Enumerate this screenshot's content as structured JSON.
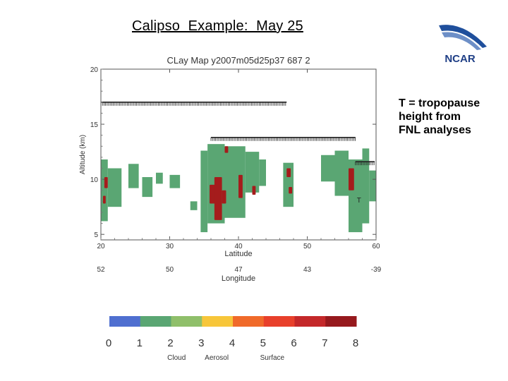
{
  "slide": {
    "title": "Calipso  Example:  May 25",
    "logo_text": "NCAR",
    "note_lines": [
      "T = tropopause",
      "height from",
      "FNL analyses"
    ]
  },
  "colors": {
    "clear": "#ffffff",
    "cloud": "#5aa673",
    "surface_red": "#a51c1c",
    "tropopause": "#222222",
    "colorbar": [
      "#4f6fd0",
      "#5aa673",
      "#8fbf6a",
      "#f7c63a",
      "#f06a2a",
      "#e8402b",
      "#c4282a",
      "#96191d"
    ]
  },
  "chart_data": {
    "type": "heatmap",
    "title": "CLay Map y2007m05d25p37 687 2",
    "xlabel": "Latitude",
    "ylabel": "Altitude (km)",
    "xlim": [
      20,
      60
    ],
    "ylim": [
      4.5,
      20
    ],
    "x_ticks": [
      20,
      30,
      40,
      50,
      60
    ],
    "y_ticks": [
      5,
      10,
      15,
      20
    ],
    "secondary_axis": {
      "label": "Longitude",
      "ticks": [
        {
          "lat": 20,
          "label": "52"
        },
        {
          "lat": 30,
          "label": "50"
        },
        {
          "lat": 40,
          "label": "47"
        },
        {
          "lat": 50,
          "label": "43"
        },
        {
          "lat": 60,
          "label": "-39"
        }
      ]
    },
    "tropopause_T": [
      {
        "lat_start": 20,
        "lat_end": 47,
        "alt": 17.0
      },
      {
        "lat_start": 36,
        "lat_end": 57,
        "alt": 13.8
      },
      {
        "lat_start": 57,
        "lat_end": 59.8,
        "alt": 11.6
      }
    ],
    "tropopause_marker": {
      "lat": 57.2,
      "alt": 7.9,
      "label": "T"
    },
    "cloud_regions": [
      {
        "lat0": 20.0,
        "lat1": 21.0,
        "top": 11.8,
        "base": 6.2
      },
      {
        "lat0": 21.0,
        "lat1": 23.0,
        "top": 11.0,
        "base": 7.5
      },
      {
        "lat0": 24.0,
        "lat1": 25.5,
        "top": 11.4,
        "base": 9.2
      },
      {
        "lat0": 26.0,
        "lat1": 27.5,
        "top": 10.2,
        "base": 8.4
      },
      {
        "lat0": 28.0,
        "lat1": 29.0,
        "top": 10.6,
        "base": 9.6
      },
      {
        "lat0": 30.0,
        "lat1": 31.5,
        "top": 10.4,
        "base": 9.2
      },
      {
        "lat0": 33.0,
        "lat1": 34.0,
        "top": 8.0,
        "base": 7.2
      },
      {
        "lat0": 34.5,
        "lat1": 35.5,
        "top": 12.6,
        "base": 5.2
      },
      {
        "lat0": 35.5,
        "lat1": 38.0,
        "top": 13.2,
        "base": 6.0
      },
      {
        "lat0": 38.0,
        "lat1": 41.0,
        "top": 13.0,
        "base": 6.5
      },
      {
        "lat0": 41.0,
        "lat1": 43.0,
        "top": 12.5,
        "base": 8.8
      },
      {
        "lat0": 43.0,
        "lat1": 44.0,
        "top": 11.8,
        "base": 9.4
      },
      {
        "lat0": 46.5,
        "lat1": 48.0,
        "top": 11.5,
        "base": 7.5
      },
      {
        "lat0": 52.0,
        "lat1": 54.0,
        "top": 12.2,
        "base": 9.8
      },
      {
        "lat0": 54.0,
        "lat1": 56.0,
        "top": 12.6,
        "base": 8.5
      },
      {
        "lat0": 56.0,
        "lat1": 58.0,
        "top": 11.8,
        "base": 5.2
      },
      {
        "lat0": 58.0,
        "lat1": 59.0,
        "top": 12.8,
        "base": 6.0
      },
      {
        "lat0": 59.0,
        "lat1": 60.0,
        "top": 10.8,
        "base": 8.0
      }
    ],
    "surface_cells": [
      {
        "lat0": 20.5,
        "lat1": 21.0,
        "top": 10.2,
        "base": 9.2
      },
      {
        "lat0": 20.3,
        "lat1": 20.7,
        "top": 8.5,
        "base": 7.8
      },
      {
        "lat0": 35.8,
        "lat1": 36.6,
        "top": 9.5,
        "base": 7.8
      },
      {
        "lat0": 36.5,
        "lat1": 37.6,
        "top": 10.2,
        "base": 6.3
      },
      {
        "lat0": 37.6,
        "lat1": 38.2,
        "top": 9.0,
        "base": 7.8
      },
      {
        "lat0": 40.0,
        "lat1": 40.6,
        "top": 10.4,
        "base": 8.3
      },
      {
        "lat0": 42.0,
        "lat1": 42.5,
        "top": 9.4,
        "base": 8.6
      },
      {
        "lat0": 47.0,
        "lat1": 47.6,
        "top": 11.0,
        "base": 10.2
      },
      {
        "lat0": 47.3,
        "lat1": 47.8,
        "top": 9.3,
        "base": 8.7
      },
      {
        "lat0": 56.0,
        "lat1": 56.8,
        "top": 11.0,
        "base": 9.0
      },
      {
        "lat0": 38.0,
        "lat1": 38.5,
        "top": 13.0,
        "base": 12.4
      }
    ],
    "colorbar": {
      "ticks": [
        "0",
        "1",
        "2",
        "3",
        "4",
        "5",
        "6",
        "7",
        "8"
      ],
      "group_labels": [
        {
          "label": "Cloud",
          "at": 2.2
        },
        {
          "label": "Aerosol",
          "at": 3.5
        },
        {
          "label": "Surface",
          "at": 5.3
        }
      ]
    }
  }
}
